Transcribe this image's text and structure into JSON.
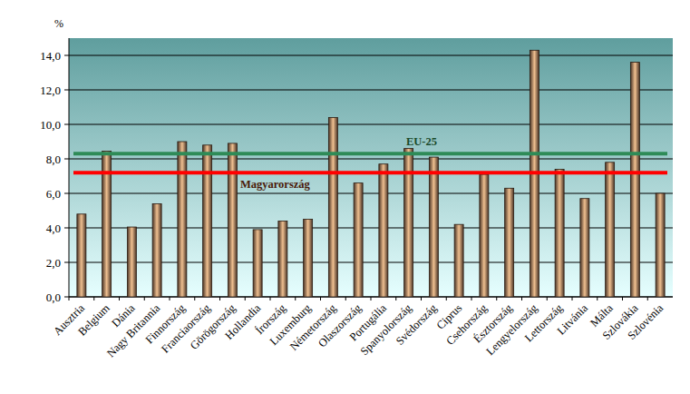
{
  "chart_data": {
    "type": "bar",
    "y_label": "%",
    "categories": [
      "Ausztria",
      "Belgium",
      "Dánia",
      "Nagy Britannia",
      "Finnország",
      "Franciaország",
      "Görögország",
      "Hollandia",
      "Írország",
      "Luxemburg",
      "Németország",
      "Olaszország",
      "Portugália",
      "Spanyolország",
      "Svédország",
      "Ciprus",
      "Csehország",
      "Észtország",
      "Lengyelország",
      "Lettország",
      "Litvánia",
      "Málta",
      "Szlovákia",
      "Szlovénia"
    ],
    "values": [
      4.8,
      8.45,
      4.05,
      5.4,
      9.0,
      8.8,
      8.9,
      3.9,
      4.4,
      4.5,
      10.4,
      6.6,
      7.7,
      8.6,
      8.1,
      4.2,
      7.1,
      6.3,
      14.3,
      7.4,
      5.7,
      7.8,
      13.6,
      6.0
    ],
    "color": "#f0c090",
    "ylim": [
      0,
      15
    ],
    "yticks": [
      {
        "value": 0,
        "label": "0,0"
      },
      {
        "value": 2,
        "label": "2,0"
      },
      {
        "value": 4,
        "label": "4,0"
      },
      {
        "value": 6,
        "label": "6,0"
      },
      {
        "value": 8,
        "label": "8,0"
      },
      {
        "value": 10,
        "label": "10,0"
      },
      {
        "value": 12,
        "label": "12,0"
      },
      {
        "value": 14,
        "label": "14,0"
      }
    ],
    "grid": true,
    "reference_lines": [
      {
        "name": "EU-25",
        "value": 8.3,
        "color": "#2e8b57"
      },
      {
        "name": "Magyarország",
        "value": 7.2,
        "color": "#ff0000"
      }
    ]
  }
}
